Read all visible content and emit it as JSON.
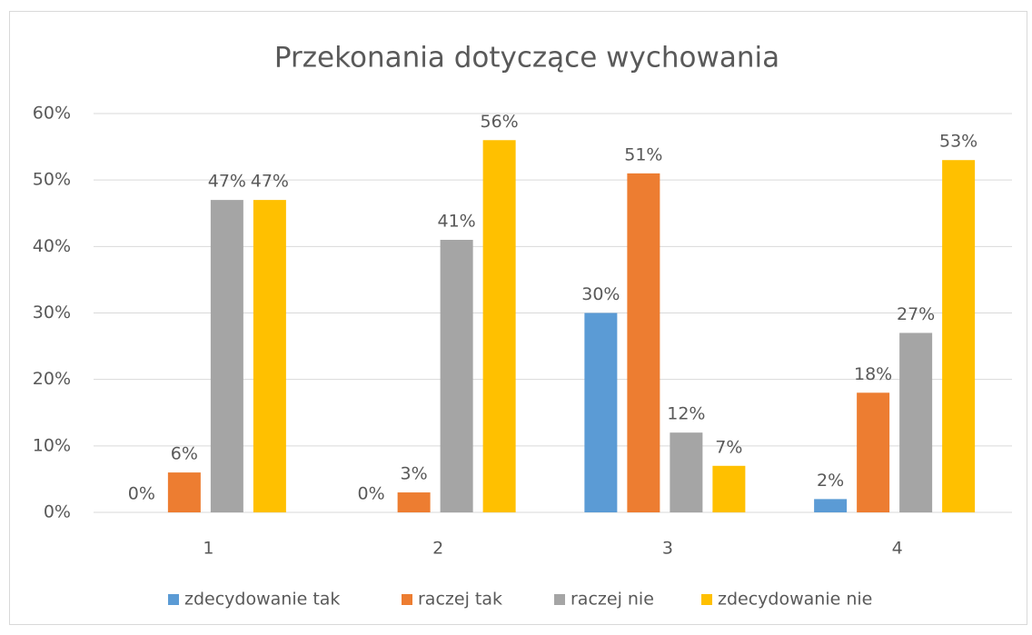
{
  "chart_data": {
    "type": "bar",
    "title": "Przekonania dotyczące wychowania",
    "categories": [
      "1",
      "2",
      "3",
      "4"
    ],
    "series": [
      {
        "name": "zdecydowanie tak",
        "color": "#5b9bd5",
        "values": [
          0,
          0,
          30,
          2
        ],
        "value_labels": [
          "0%",
          "0%",
          "30%",
          "2%"
        ]
      },
      {
        "name": "raczej tak",
        "color": "#ed7d31",
        "values": [
          6,
          3,
          51,
          18
        ],
        "value_labels": [
          "6%",
          "3%",
          "51%",
          "18%"
        ]
      },
      {
        "name": "raczej nie",
        "color": "#a5a5a5",
        "values": [
          47,
          41,
          12,
          27
        ],
        "value_labels": [
          "47%",
          "41%",
          "12%",
          "27%"
        ]
      },
      {
        "name": "zdecydowanie nie",
        "color": "#ffc000",
        "values": [
          47,
          56,
          7,
          53
        ],
        "value_labels": [
          "47%",
          "56%",
          "7%",
          "53%"
        ]
      }
    ],
    "ylim": [
      0,
      60
    ],
    "yticks": [
      {
        "value": 0,
        "label": "0%"
      },
      {
        "value": 10,
        "label": "10%"
      },
      {
        "value": 20,
        "label": "20%"
      },
      {
        "value": 30,
        "label": "30%"
      },
      {
        "value": 40,
        "label": "40%"
      },
      {
        "value": 50,
        "label": "50%"
      },
      {
        "value": 60,
        "label": "60%"
      }
    ],
    "grid": true,
    "legend": "bottom"
  }
}
